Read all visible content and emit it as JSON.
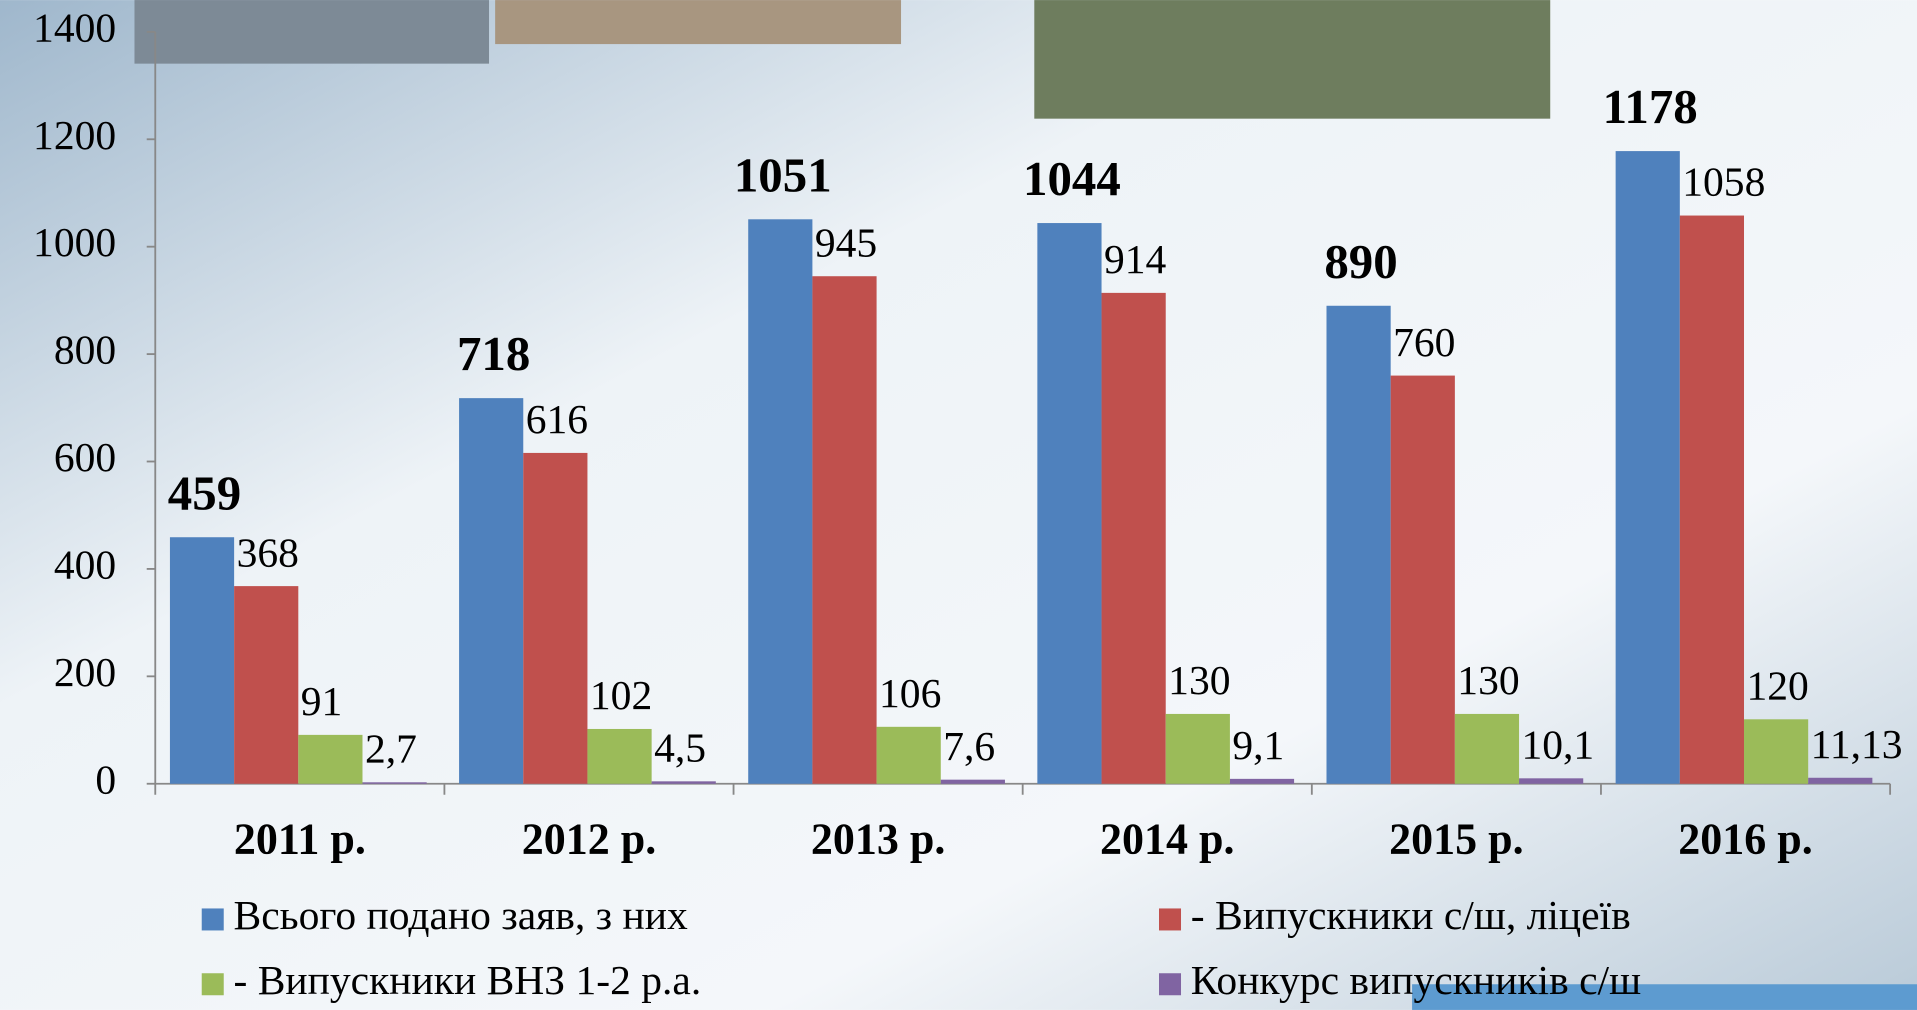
{
  "chart_data": {
    "type": "bar",
    "categories": [
      "2011 р.",
      "2012 р.",
      "2013 р.",
      "2014 р.",
      "2015 р.",
      "2016 р."
    ],
    "series": [
      {
        "name": "Всього подано заяв, з них",
        "color": "#4f81bd",
        "values": [
          459,
          718,
          1051,
          1044,
          890,
          1178
        ]
      },
      {
        "name": "- Випускники с/ш, ліцеїв",
        "color": "#c0504d",
        "values": [
          368,
          616,
          945,
          914,
          760,
          1058
        ]
      },
      {
        "name": "- Випускники ВНЗ 1-2 р.а.",
        "color": "#9bbb59",
        "values": [
          91,
          102,
          106,
          130,
          130,
          120
        ]
      },
      {
        "name": "Конкурс випускників с/ш",
        "color": "#8064a2",
        "values": [
          2.7,
          4.5,
          7.6,
          9.1,
          10.1,
          11.13
        ],
        "value_labels": [
          "2,7",
          "4,5",
          "7,6",
          "9,1",
          "10,1",
          "11,13"
        ]
      }
    ],
    "ylim": [
      0,
      1400
    ],
    "yticks": [
      0,
      200,
      400,
      600,
      800,
      1000,
      1200,
      1400
    ],
    "legend": "bottom"
  }
}
